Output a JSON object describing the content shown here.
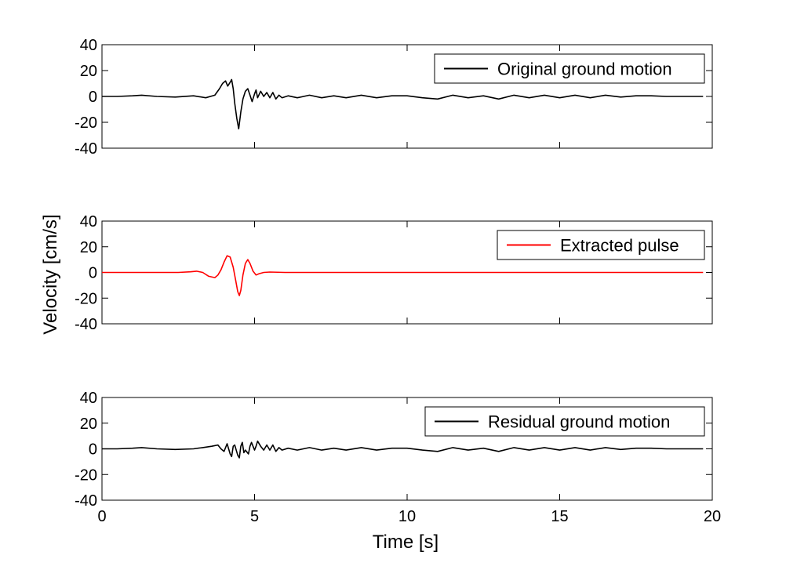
{
  "figure": {
    "ylabel": "Velocity [cm/s]",
    "xlabel": "Time [s]"
  },
  "chart_data": [
    {
      "type": "line",
      "xlim": [
        0,
        20
      ],
      "ylim": [
        -40,
        40
      ],
      "yticks": [
        "40",
        "20",
        "0",
        "-20",
        "-40"
      ],
      "xticks": [
        "0",
        "5",
        "10",
        "15",
        "20"
      ],
      "legend_position": "top-right",
      "grid": false,
      "series": [
        {
          "name": "Original ground motion",
          "color": "#000000",
          "x": [
            0,
            0.5,
            1.0,
            1.3,
            1.8,
            2.4,
            3.0,
            3.4,
            3.7,
            3.85,
            3.95,
            4.05,
            4.12,
            4.2,
            4.25,
            4.3,
            4.35,
            4.42,
            4.48,
            4.55,
            4.62,
            4.7,
            4.78,
            4.85,
            4.92,
            5.0,
            5.05,
            5.1,
            5.2,
            5.3,
            5.4,
            5.5,
            5.6,
            5.7,
            5.8,
            5.9,
            6.1,
            6.4,
            6.8,
            7.2,
            7.6,
            8.0,
            8.5,
            9.0,
            9.5,
            10.0,
            10.5,
            11.0,
            11.5,
            12.0,
            12.5,
            13.0,
            13.5,
            14.0,
            14.5,
            15.0,
            15.5,
            16.0,
            16.5,
            17.0,
            17.5,
            18.0,
            18.5,
            19.0,
            19.7
          ],
          "y": [
            0,
            0,
            0.5,
            1,
            0,
            -0.5,
            0.5,
            -1,
            1,
            6,
            10,
            12,
            8,
            11,
            13,
            6,
            -5,
            -17,
            -25,
            -12,
            -2,
            4,
            6,
            1,
            -4,
            2,
            5,
            -1,
            4,
            0,
            3,
            -1,
            3,
            -2,
            1,
            -1,
            0.5,
            -1,
            1,
            -1,
            0.5,
            -1,
            1,
            -1,
            0.5,
            0.5,
            -1,
            -2,
            1,
            -1,
            0.5,
            -2,
            1,
            -1,
            1,
            -1,
            1,
            -1,
            1,
            -0.5,
            0.5,
            0.5,
            0,
            0,
            0
          ]
        }
      ]
    },
    {
      "type": "line",
      "xlim": [
        0,
        20
      ],
      "ylim": [
        -40,
        40
      ],
      "yticks": [
        "40",
        "20",
        "0",
        "-20",
        "-40"
      ],
      "xticks": [
        "0",
        "5",
        "10",
        "15",
        "20"
      ],
      "legend_position": "top-right",
      "grid": false,
      "series": [
        {
          "name": "Extracted pulse",
          "color": "#ff0000",
          "x": [
            0,
            2.5,
            2.9,
            3.1,
            3.3,
            3.5,
            3.7,
            3.8,
            3.9,
            4.0,
            4.1,
            4.2,
            4.3,
            4.38,
            4.45,
            4.5,
            4.55,
            4.62,
            4.7,
            4.78,
            4.85,
            4.95,
            5.05,
            5.15,
            5.3,
            5.5,
            6.0,
            19.7
          ],
          "y": [
            0,
            0,
            0.5,
            1,
            0,
            -3,
            -4,
            -2,
            2,
            8,
            13,
            12,
            4,
            -6,
            -15,
            -18,
            -14,
            -2,
            7,
            10,
            7,
            1,
            -2,
            -1,
            0,
            0.3,
            0,
            0
          ]
        }
      ]
    },
    {
      "type": "line",
      "xlim": [
        0,
        20
      ],
      "ylim": [
        -40,
        40
      ],
      "yticks": [
        "40",
        "20",
        "0",
        "-20",
        "-40"
      ],
      "xticks": [
        "0",
        "5",
        "10",
        "15",
        "20"
      ],
      "legend_position": "top-right",
      "grid": false,
      "series": [
        {
          "name": "Residual ground motion",
          "color": "#000000",
          "x": [
            0,
            0.5,
            1.0,
            1.3,
            1.8,
            2.4,
            3.0,
            3.3,
            3.6,
            3.8,
            3.9,
            4.0,
            4.1,
            4.2,
            4.25,
            4.3,
            4.35,
            4.45,
            4.5,
            4.55,
            4.6,
            4.65,
            4.7,
            4.8,
            4.85,
            4.9,
            5.0,
            5.05,
            5.1,
            5.2,
            5.3,
            5.4,
            5.5,
            5.6,
            5.7,
            5.8,
            5.9,
            6.1,
            6.4,
            6.8,
            7.2,
            7.6,
            8.0,
            8.5,
            9.0,
            9.5,
            10.0,
            10.5,
            11.0,
            11.5,
            12.0,
            12.5,
            13.0,
            13.5,
            14.0,
            14.5,
            15.0,
            15.5,
            16.0,
            16.5,
            17.0,
            17.5,
            18.0,
            18.5,
            19.0,
            19.7
          ],
          "y": [
            0,
            0,
            0.5,
            1,
            0,
            -0.5,
            0,
            1,
            2,
            3,
            0,
            -2,
            4,
            -4,
            -6,
            2,
            3,
            -5,
            -7,
            2,
            5,
            -3,
            -1,
            -4,
            2,
            5,
            -1,
            2,
            6,
            2,
            -1,
            3,
            -1,
            3,
            -2,
            1,
            -1,
            0.5,
            -1,
            1,
            -1,
            0.5,
            -1,
            1,
            -1,
            0.5,
            0.5,
            -1,
            -2,
            1,
            -1,
            0.5,
            -2,
            1,
            -1,
            1,
            -1,
            1,
            -1,
            1,
            -0.5,
            0.5,
            0.5,
            0,
            0,
            0
          ]
        }
      ]
    }
  ]
}
